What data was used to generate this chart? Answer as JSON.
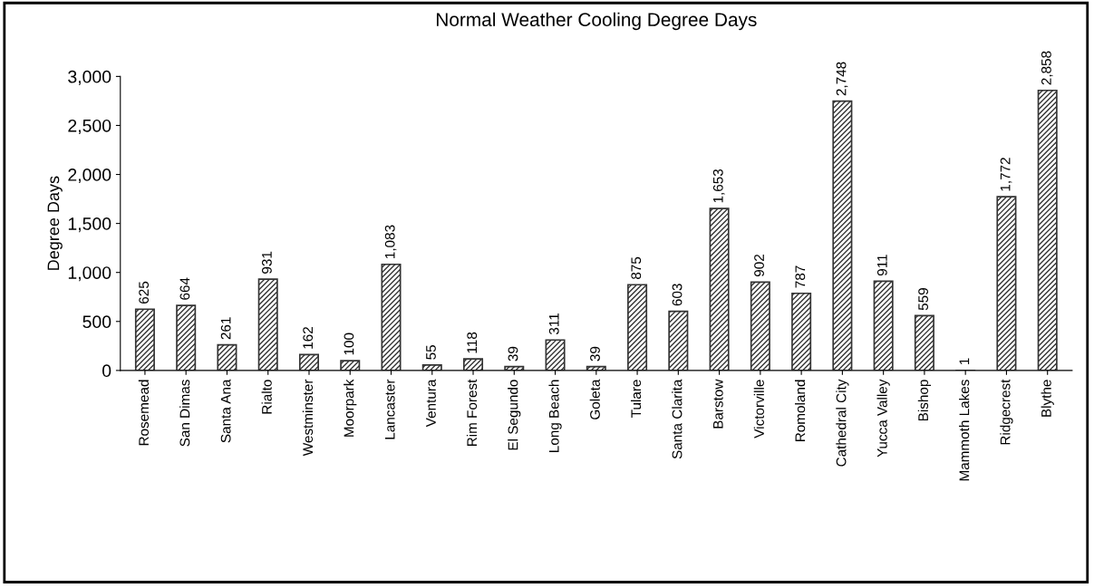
{
  "chart_data": {
    "type": "bar",
    "title": "Normal Weather Cooling Degree Days",
    "ylabel": "Degree Days",
    "categories": [
      "Rosemead",
      "San Dimas",
      "Santa Ana",
      "Rialto",
      "Westminster",
      "Moorpark",
      "Lancaster",
      "Ventura",
      "Rim Forest",
      "El Segundo",
      "Long Beach",
      "Goleta",
      "Tulare",
      "Santa Clarita",
      "Barstow",
      "Victorville",
      "Romoland",
      "Cathedral City",
      "Yucca Valley",
      "Bishop",
      "Mammoth Lakes",
      "Ridgecrest",
      "Blythe"
    ],
    "values": [
      625,
      664,
      261,
      931,
      162,
      100,
      1083,
      55,
      118,
      39,
      311,
      39,
      875,
      603,
      1653,
      902,
      787,
      2748,
      911,
      559,
      1,
      1772,
      2858
    ],
    "value_labels": [
      "625",
      "664",
      "261",
      "931",
      "162",
      "100",
      "1,083",
      "55",
      "118",
      "39",
      "311",
      "39",
      "875",
      "603",
      "1,653",
      "902",
      "787",
      "2,748",
      "911",
      "559",
      "1",
      "1,772",
      "2,858"
    ],
    "color": "#333333",
    "ylim": [
      0,
      3000
    ],
    "yticks": [
      {
        "value": 0,
        "label": "0"
      },
      {
        "value": 500,
        "label": "500"
      },
      {
        "value": 1000,
        "label": "1,000"
      },
      {
        "value": 1500,
        "label": "1,500"
      },
      {
        "value": 2000,
        "label": "2,000"
      },
      {
        "value": 2500,
        "label": "2,500"
      },
      {
        "value": 3000,
        "label": "3,000"
      }
    ],
    "grid": false,
    "legend": false
  }
}
